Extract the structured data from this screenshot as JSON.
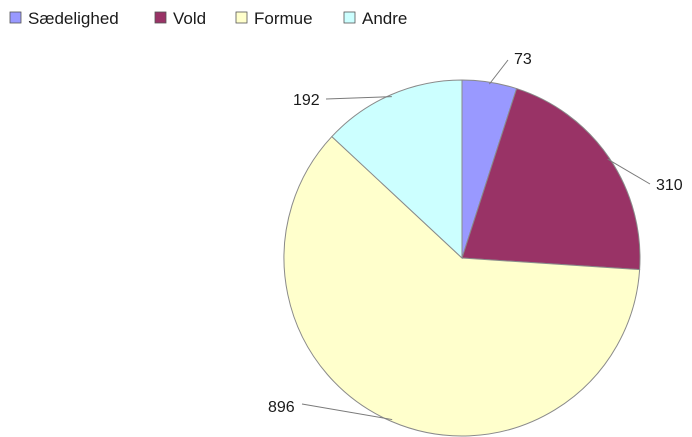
{
  "chart_data": {
    "type": "pie",
    "categories": [
      "Sædelighed",
      "Vold",
      "Formue",
      "Andre"
    ],
    "values": [
      73,
      310,
      896,
      192
    ],
    "colors": [
      "#9999ff",
      "#993366",
      "#ffffcc",
      "#ccffff"
    ],
    "data_labels": [
      "73",
      "310",
      "896",
      "192"
    ],
    "legend_position": "top-left",
    "start_angle": "12 o'clock",
    "direction": "clockwise"
  }
}
